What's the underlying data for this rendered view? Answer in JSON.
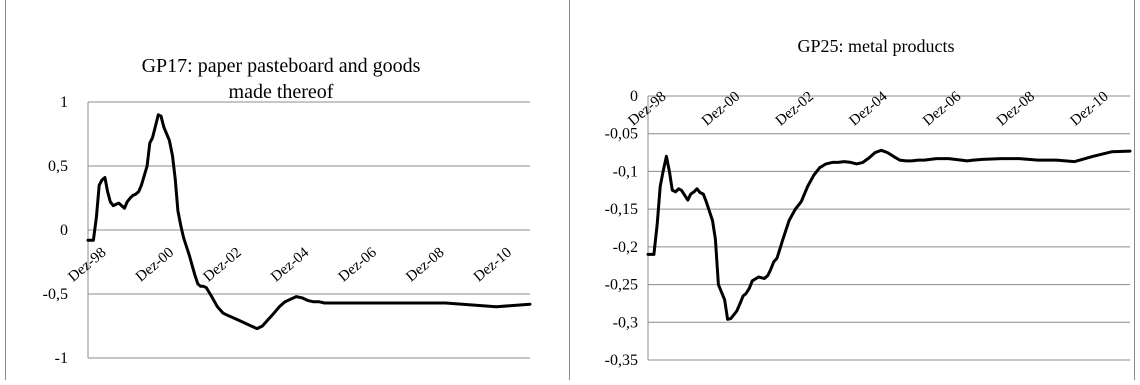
{
  "chart_data": [
    {
      "type": "line",
      "title": "GP17:  paper pasteboard and goods made thereof",
      "title_lines": [
        "GP17:  paper pasteboard and goods",
        "made thereof"
      ],
      "xlabel": "",
      "ylabel": "",
      "ylim": [
        -1,
        1
      ],
      "yticks": [
        1,
        0.5,
        0,
        -0.5,
        -1
      ],
      "ytick_labels": [
        "1",
        "0,5",
        "0",
        "-0,5",
        "-1"
      ],
      "xlim": [
        "Dez-98",
        "Dez-12"
      ],
      "x_tick_labels": [
        "Dez-98",
        "Dez-00",
        "Dez-02",
        "Dez-04",
        "Dez-06",
        "Dez-08",
        "Dez-10"
      ],
      "x_tick_years": [
        1998,
        2000,
        2002,
        2004,
        2006,
        2008,
        2010
      ],
      "grid": true,
      "legend": "none",
      "colors": {
        "line": "#000000",
        "grid": "#8c8c8c"
      },
      "series": [
        {
          "x": [
            1998.92,
            1999.08,
            1999.17,
            1999.25,
            1999.33,
            1999.42,
            1999.5,
            1999.58,
            1999.67,
            1999.75,
            1999.83,
            2000.0,
            2000.08,
            2000.17,
            2000.25,
            2000.33,
            2000.42,
            2000.5,
            2000.67,
            2000.75,
            2000.83,
            2001.0,
            2001.08,
            2001.17,
            2001.25,
            2001.33,
            2001.42,
            2001.5,
            2001.58,
            2001.67,
            2001.75,
            2001.92,
            2002.08,
            2002.17,
            2002.25,
            2002.33,
            2002.42,
            2002.58,
            2002.75,
            2002.92,
            2003.08,
            2003.25,
            2003.42,
            2003.58,
            2003.75,
            2003.92,
            2004.08,
            2004.25,
            2004.42,
            2004.58,
            2004.75,
            2004.92,
            2005.08,
            2005.25,
            2005.42,
            2005.58,
            2005.75,
            2005.92,
            2006.08,
            2006.25,
            2006.42,
            2006.58,
            2006.75,
            2006.92,
            2007.08,
            2007.25,
            2007.42,
            2007.58,
            2007.75,
            2008.0,
            2008.5,
            2009.0,
            2009.5,
            2010.0,
            2010.5,
            2011.0,
            2011.5,
            2012.0
          ],
          "y": [
            -0.08,
            -0.08,
            0.1,
            0.35,
            0.39,
            0.41,
            0.3,
            0.22,
            0.19,
            0.2,
            0.21,
            0.17,
            0.22,
            0.25,
            0.27,
            0.28,
            0.3,
            0.35,
            0.5,
            0.68,
            0.72,
            0.9,
            0.89,
            0.8,
            0.75,
            0.7,
            0.58,
            0.4,
            0.15,
            0.03,
            -0.06,
            -0.2,
            -0.35,
            -0.42,
            -0.44,
            -0.44,
            -0.45,
            -0.52,
            -0.6,
            -0.65,
            -0.67,
            -0.69,
            -0.71,
            -0.73,
            -0.75,
            -0.77,
            -0.75,
            -0.7,
            -0.65,
            -0.6,
            -0.56,
            -0.54,
            -0.52,
            -0.53,
            -0.55,
            -0.56,
            -0.56,
            -0.57,
            -0.57,
            -0.57,
            -0.57,
            -0.57,
            -0.57,
            -0.57,
            -0.57,
            -0.57,
            -0.57,
            -0.57,
            -0.57,
            -0.57,
            -0.57,
            -0.57,
            -0.57,
            -0.58,
            -0.59,
            -0.6,
            -0.59,
            -0.58
          ]
        }
      ]
    },
    {
      "type": "line",
      "title": "GP25: metal products",
      "title_lines": [
        "GP25: metal products"
      ],
      "xlabel": "",
      "ylabel": "",
      "ylim": [
        -0.35,
        0
      ],
      "yticks": [
        0,
        -0.05,
        -0.1,
        -0.15,
        -0.2,
        -0.25,
        -0.3,
        -0.35
      ],
      "ytick_labels": [
        "0",
        "-0,05",
        "-0,1",
        "-0,15",
        "-0,2",
        "-0,25",
        "-0,3",
        "-0,35"
      ],
      "xlim": [
        "Dez-98",
        "Dez-12"
      ],
      "x_tick_labels": [
        "Dez-98",
        "Dez-00",
        "Dez-02",
        "Dez-04",
        "Dez-06",
        "Dez-08",
        "Dez-10"
      ],
      "x_tick_years": [
        1998,
        2000,
        2002,
        2004,
        2006,
        2008,
        2010
      ],
      "grid": true,
      "legend": "none",
      "colors": {
        "line": "#000000",
        "grid": "#8c8c8c"
      },
      "series": [
        {
          "x": [
            1998.92,
            1999.08,
            1999.17,
            1999.25,
            1999.33,
            1999.42,
            1999.5,
            1999.58,
            1999.67,
            1999.75,
            1999.83,
            2000.0,
            2000.08,
            2000.17,
            2000.25,
            2000.33,
            2000.42,
            2000.5,
            2000.67,
            2000.75,
            2000.83,
            2001.0,
            2001.08,
            2001.17,
            2001.25,
            2001.33,
            2001.42,
            2001.5,
            2001.58,
            2001.67,
            2001.75,
            2001.92,
            2002.08,
            2002.17,
            2002.25,
            2002.33,
            2002.42,
            2002.58,
            2002.75,
            2002.92,
            2003.08,
            2003.25,
            2003.42,
            2003.58,
            2003.75,
            2003.92,
            2004.08,
            2004.25,
            2004.42,
            2004.58,
            2004.75,
            2004.92,
            2005.08,
            2005.25,
            2005.42,
            2005.58,
            2005.75,
            2005.92,
            2006.08,
            2006.25,
            2006.42,
            2006.58,
            2006.75,
            2006.92,
            2007.08,
            2007.25,
            2007.42,
            2007.58,
            2007.75,
            2008.0,
            2008.5,
            2009.0,
            2009.5,
            2010.0,
            2010.5,
            2011.0,
            2011.5,
            2012.0
          ],
          "y": [
            -0.21,
            -0.21,
            -0.17,
            -0.12,
            -0.1,
            -0.08,
            -0.1,
            -0.125,
            -0.127,
            -0.123,
            -0.125,
            -0.138,
            -0.13,
            -0.127,
            -0.123,
            -0.128,
            -0.13,
            -0.14,
            -0.165,
            -0.19,
            -0.25,
            -0.27,
            -0.296,
            -0.295,
            -0.29,
            -0.285,
            -0.275,
            -0.265,
            -0.262,
            -0.255,
            -0.245,
            -0.24,
            -0.242,
            -0.238,
            -0.23,
            -0.22,
            -0.215,
            -0.19,
            -0.165,
            -0.15,
            -0.14,
            -0.12,
            -0.105,
            -0.095,
            -0.09,
            -0.088,
            -0.088,
            -0.087,
            -0.088,
            -0.09,
            -0.088,
            -0.082,
            -0.075,
            -0.072,
            -0.075,
            -0.08,
            -0.085,
            -0.086,
            -0.086,
            -0.085,
            -0.085,
            -0.084,
            -0.083,
            -0.083,
            -0.083,
            -0.084,
            -0.085,
            -0.086,
            -0.085,
            -0.084,
            -0.083,
            -0.083,
            -0.085,
            -0.085,
            -0.087,
            -0.08,
            -0.074,
            -0.073
          ]
        }
      ]
    }
  ]
}
